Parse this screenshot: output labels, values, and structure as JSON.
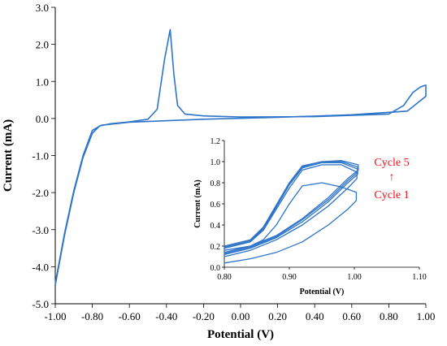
{
  "chart_data": [
    {
      "type": "line",
      "id": "main",
      "title": "",
      "xlabel": "Potential (V)",
      "ylabel": "Current (mA)",
      "xlim": [
        -1.0,
        1.0
      ],
      "ylim": [
        -5.0,
        3.0
      ],
      "x_ticks": [
        "-1.00",
        "-0.80",
        "-0.60",
        "-0.40",
        "-0.20",
        "0.00",
        "0.20",
        "0.40",
        "0.60",
        "0.80",
        "1.00"
      ],
      "y_ticks": [
        "-5.0",
        "-4.0",
        "-3.0",
        "-2.0",
        "-1.0",
        "0.0",
        "1.0",
        "2.0",
        "3.0"
      ],
      "line_color": "#2e74c9",
      "series": [
        {
          "values": [
            [
              -1.0,
              -4.5
            ],
            [
              -0.95,
              -3.15
            ],
            [
              -0.9,
              -2.0
            ],
            [
              -0.85,
              -1.05
            ],
            [
              -0.8,
              -0.4
            ],
            [
              -0.76,
              -0.2
            ],
            [
              -0.7,
              -0.14
            ],
            [
              -0.6,
              -0.09
            ],
            [
              -0.5,
              -0.02
            ],
            [
              -0.45,
              0.25
            ],
            [
              -0.41,
              1.6
            ],
            [
              -0.38,
              2.4
            ],
            [
              -0.36,
              1.2
            ],
            [
              -0.34,
              0.35
            ],
            [
              -0.3,
              0.12
            ],
            [
              -0.2,
              0.07
            ],
            [
              0.0,
              0.04
            ],
            [
              0.4,
              0.05
            ],
            [
              0.8,
              0.12
            ],
            [
              0.88,
              0.35
            ],
            [
              0.93,
              0.7
            ],
            [
              0.97,
              0.85
            ],
            [
              1.0,
              0.9
            ],
            [
              1.0,
              0.6
            ],
            [
              0.9,
              0.2
            ],
            [
              0.6,
              0.1
            ],
            [
              0.2,
              0.03
            ],
            [
              -0.2,
              -0.02
            ],
            [
              -0.6,
              -0.1
            ],
            [
              -0.75,
              -0.18
            ],
            [
              -0.8,
              -0.32
            ],
            [
              -0.85,
              -1.0
            ],
            [
              -0.9,
              -1.95
            ],
            [
              -0.95,
              -3.1
            ],
            [
              -1.0,
              -4.45
            ]
          ]
        }
      ]
    },
    {
      "type": "line",
      "id": "inset",
      "title": "",
      "xlabel": "Potential (V)",
      "ylabel": "Current (mA)",
      "xlim": [
        0.8,
        1.1
      ],
      "ylim": [
        0.0,
        1.2
      ],
      "x_ticks": [
        "0.80",
        "0.90",
        "1.00",
        "1.10"
      ],
      "y_ticks": [
        "0.0",
        "0.2",
        "0.4",
        "0.6",
        "0.8",
        "1.0",
        "1.2"
      ],
      "line_color": "#2e74c9",
      "series": [
        {
          "values": [
            [
              0.8,
              0.04
            ],
            [
              0.84,
              0.08
            ],
            [
              0.88,
              0.14
            ],
            [
              0.92,
              0.24
            ],
            [
              0.96,
              0.4
            ],
            [
              0.99,
              0.55
            ],
            [
              1.003,
              0.63
            ],
            [
              1.003,
              0.71
            ],
            [
              0.98,
              0.76
            ],
            [
              0.95,
              0.8
            ],
            [
              0.92,
              0.77
            ],
            [
              0.9,
              0.6
            ],
            [
              0.88,
              0.4
            ],
            [
              0.86,
              0.26
            ],
            [
              0.84,
              0.2
            ],
            [
              0.8,
              0.16
            ]
          ]
        },
        {
          "values": [
            [
              0.8,
              0.1
            ],
            [
              0.84,
              0.16
            ],
            [
              0.88,
              0.26
            ],
            [
              0.92,
              0.4
            ],
            [
              0.96,
              0.58
            ],
            [
              0.99,
              0.75
            ],
            [
              1.004,
              0.84
            ],
            [
              1.004,
              0.9
            ],
            [
              0.98,
              0.97
            ],
            [
              0.95,
              0.97
            ],
            [
              0.92,
              0.92
            ],
            [
              0.9,
              0.75
            ],
            [
              0.88,
              0.55
            ],
            [
              0.86,
              0.35
            ],
            [
              0.84,
              0.24
            ],
            [
              0.8,
              0.18
            ]
          ]
        },
        {
          "values": [
            [
              0.8,
              0.12
            ],
            [
              0.84,
              0.18
            ],
            [
              0.88,
              0.28
            ],
            [
              0.92,
              0.43
            ],
            [
              0.96,
              0.62
            ],
            [
              0.99,
              0.8
            ],
            [
              1.005,
              0.88
            ],
            [
              1.005,
              0.93
            ],
            [
              0.98,
              0.99
            ],
            [
              0.95,
              0.99
            ],
            [
              0.92,
              0.94
            ],
            [
              0.9,
              0.78
            ],
            [
              0.88,
              0.57
            ],
            [
              0.86,
              0.36
            ],
            [
              0.84,
              0.24
            ],
            [
              0.8,
              0.18
            ]
          ]
        },
        {
          "values": [
            [
              0.8,
              0.13
            ],
            [
              0.84,
              0.19
            ],
            [
              0.88,
              0.29
            ],
            [
              0.92,
              0.45
            ],
            [
              0.96,
              0.64
            ],
            [
              0.99,
              0.82
            ],
            [
              1.005,
              0.9
            ],
            [
              1.005,
              0.95
            ],
            [
              0.98,
              1.0
            ],
            [
              0.95,
              1.0
            ],
            [
              0.92,
              0.95
            ],
            [
              0.9,
              0.79
            ],
            [
              0.88,
              0.58
            ],
            [
              0.86,
              0.37
            ],
            [
              0.84,
              0.25
            ],
            [
              0.8,
              0.19
            ]
          ]
        },
        {
          "values": [
            [
              0.8,
              0.14
            ],
            [
              0.84,
              0.2
            ],
            [
              0.88,
              0.3
            ],
            [
              0.92,
              0.46
            ],
            [
              0.96,
              0.66
            ],
            [
              0.99,
              0.84
            ],
            [
              1.006,
              0.92
            ],
            [
              1.006,
              0.97
            ],
            [
              0.98,
              1.01
            ],
            [
              0.95,
              1.0
            ],
            [
              0.92,
              0.96
            ],
            [
              0.9,
              0.8
            ],
            [
              0.88,
              0.59
            ],
            [
              0.86,
              0.38
            ],
            [
              0.84,
              0.26
            ],
            [
              0.8,
              0.2
            ]
          ]
        }
      ],
      "annotations": [
        "Cycle 5",
        "↑",
        "Cycle 1"
      ],
      "annotation_color": "#e8141b"
    }
  ]
}
